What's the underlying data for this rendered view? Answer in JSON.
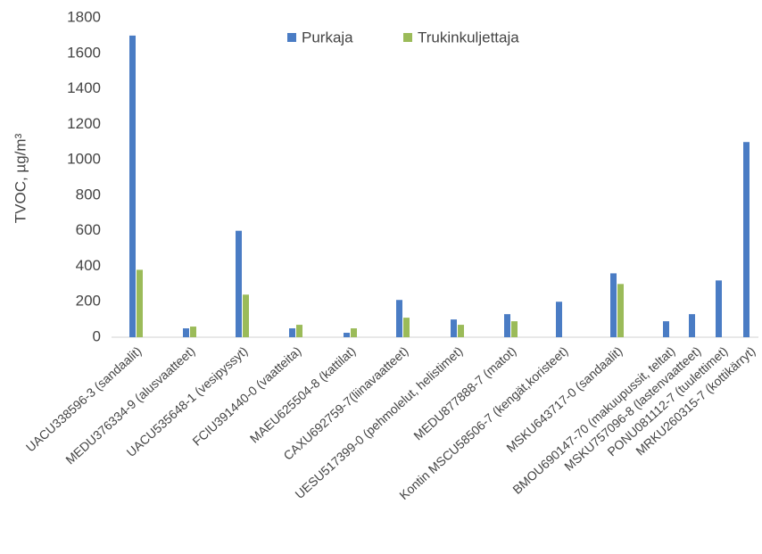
{
  "chart_data": {
    "type": "bar",
    "y_label": "TVOC, µg/m³",
    "categories": [
      "UACU338596-3 (sandaalit)",
      "MEDU376334-9 (alusvaatteet)",
      "UACU535648-1 (vesipyssyt)",
      "FCIU391440-0 (vaatteita)",
      "MAEU625504-8 (kattilat)",
      "CAXU692759-7(liinavaatteet)",
      "UESU517399-0 (pehmolelut, helistimet)",
      "MEDU877888-7 (matot)",
      "Kontin MSCU58506-7 (kengät,koristeet)",
      "MSKU643717-0 (sandaalit)",
      "BMOU690147-70 (makuupussit, teltat)",
      "MSKU757096-8 (lastenvaatteet)",
      "PONU081112-7 (tuulettimet)",
      "MRKU260315-7 (kottikärryt)"
    ],
    "series": [
      {
        "name": "Purkaja",
        "color": "#4a7cc4",
        "values": [
          1700,
          50,
          600,
          50,
          25,
          210,
          100,
          130,
          200,
          360,
          90,
          130,
          320,
          1100
        ]
      },
      {
        "name": "Trukinkuljettaja",
        "color": "#9bbb59",
        "values": [
          380,
          60,
          240,
          70,
          50,
          110,
          70,
          90,
          null,
          300,
          null,
          null,
          null,
          null
        ]
      }
    ],
    "ylim": [
      0,
      1800
    ],
    "yticks": [
      0,
      200,
      400,
      600,
      800,
      1000,
      1200,
      1400,
      1600,
      1800
    ],
    "grid": false,
    "legend": "top"
  }
}
